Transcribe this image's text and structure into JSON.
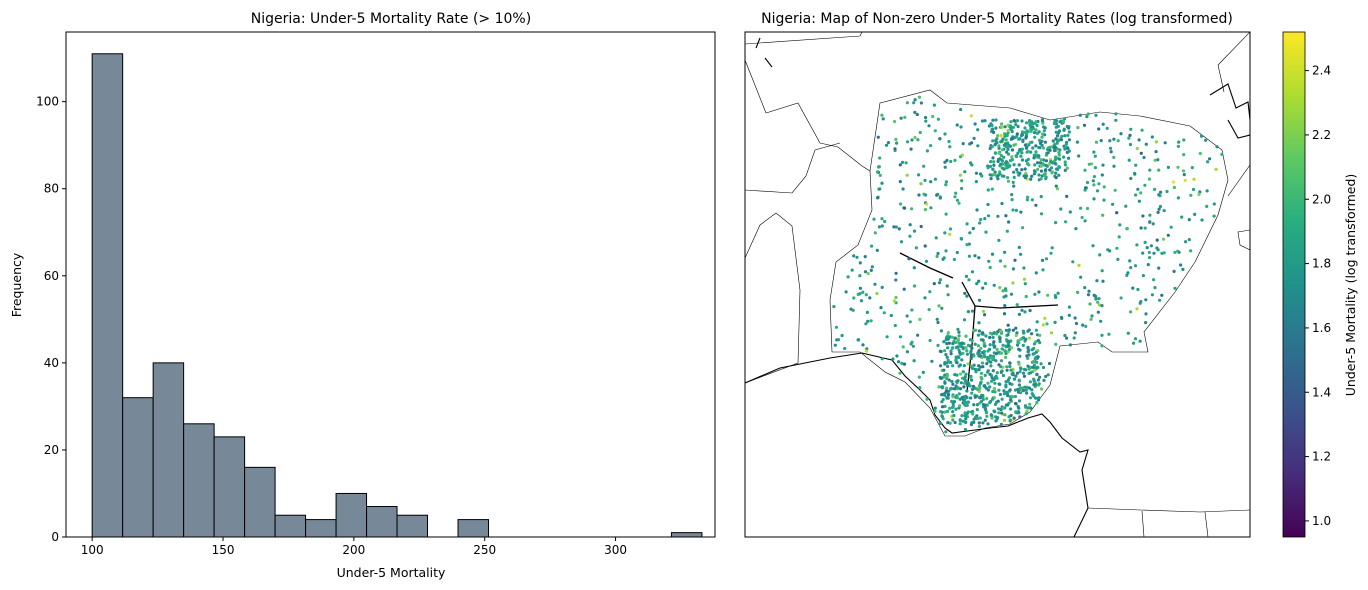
{
  "chart_data": [
    {
      "type": "bar",
      "title": "Nigeria: Under-5 Mortality Rate (> 10%)",
      "xlabel": "Under-5 Mortality",
      "ylabel": "Frequency",
      "xlim": [
        90,
        338
      ],
      "ylim": [
        0,
        116
      ],
      "xticks": [
        100,
        150,
        200,
        250,
        300
      ],
      "yticks": [
        0,
        20,
        40,
        60,
        80,
        100
      ],
      "bin_width": 11.65,
      "bin_start": 100,
      "values": [
        111,
        32,
        40,
        26,
        23,
        16,
        5,
        4,
        10,
        7,
        5,
        0,
        4,
        0,
        0,
        0,
        0,
        0,
        0,
        1
      ],
      "bar_color": "#778899",
      "edge_color": "#000000",
      "grid": false
    },
    {
      "type": "scatter",
      "title": "Nigeria: Map of Non-zero Under-5 Mortality Rates (log transformed)",
      "colorbar": {
        "label": "Under-5 Mortality (log transformed)",
        "min": 0.95,
        "max": 2.52,
        "ticks": [
          "1.0",
          "1.2",
          "1.4",
          "1.6",
          "1.8",
          "2.0",
          "2.2",
          "2.4"
        ],
        "colormap": "viridis"
      },
      "region": "Nigeria",
      "point_count_approx": 1600,
      "color_range": [
        1.0,
        2.5
      ]
    }
  ]
}
